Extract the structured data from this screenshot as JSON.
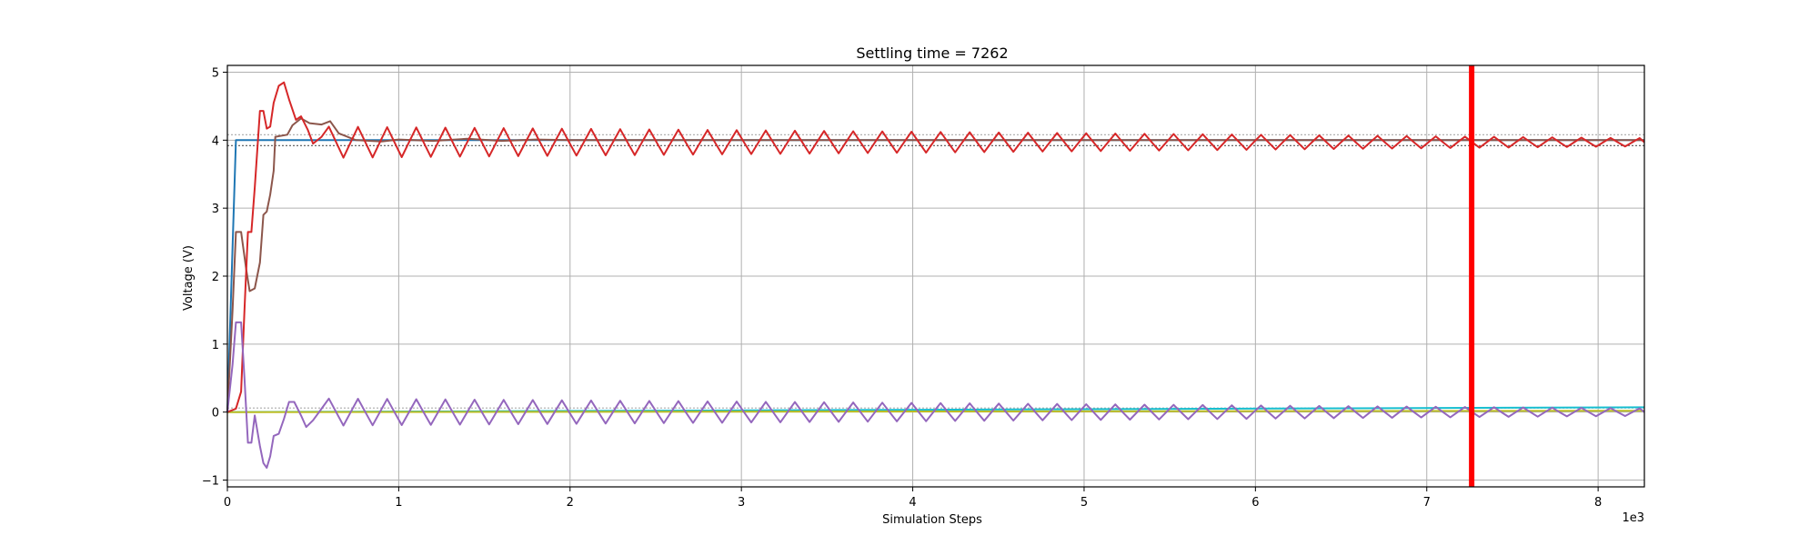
{
  "chart_data": {
    "type": "line",
    "title": "Settling time = 7262",
    "xlabel": "Simulation Steps",
    "ylabel": "Voltage (V)",
    "x_offset_label": "1e3",
    "xlim": [
      0,
      8.27
    ],
    "ylim": [
      -1.1,
      5.1
    ],
    "xticks": [
      0,
      1,
      2,
      3,
      4,
      5,
      6,
      7,
      8
    ],
    "yticks": [
      -1,
      0,
      1,
      2,
      3,
      4,
      5
    ],
    "grid": true,
    "settling_marker": {
      "x": 7.262,
      "color": "#ff0000"
    },
    "tolerance_bands": [
      {
        "y": 4.08,
        "color": "#aaaaaa"
      },
      {
        "y": 3.92,
        "color": "#555555"
      },
      {
        "y": 0.06,
        "color": "#aaaaaa"
      }
    ],
    "series": [
      {
        "color": "#1f77b4",
        "points": [
          [
            0,
            0
          ],
          [
            0.05,
            4.0
          ],
          [
            8.27,
            4.0
          ]
        ]
      },
      {
        "color": "#17becf",
        "points": [
          [
            0,
            0.0
          ],
          [
            8.27,
            0.07
          ]
        ]
      },
      {
        "color": "#bcbd22",
        "points": [
          [
            0,
            0.0
          ],
          [
            8.27,
            0.02
          ]
        ]
      },
      {
        "color": "#8c564b",
        "points": [
          [
            0,
            0
          ],
          [
            0.03,
            1.5
          ],
          [
            0.05,
            2.65
          ],
          [
            0.08,
            2.65
          ],
          [
            0.11,
            2.1
          ],
          [
            0.13,
            1.78
          ],
          [
            0.16,
            1.82
          ],
          [
            0.19,
            2.2
          ],
          [
            0.21,
            2.9
          ],
          [
            0.23,
            2.95
          ],
          [
            0.25,
            3.2
          ],
          [
            0.27,
            3.55
          ],
          [
            0.28,
            4.05
          ],
          [
            0.35,
            4.08
          ],
          [
            0.38,
            4.22
          ],
          [
            0.43,
            4.32
          ],
          [
            0.48,
            4.25
          ],
          [
            0.55,
            4.23
          ],
          [
            0.6,
            4.28
          ],
          [
            0.65,
            4.1
          ],
          [
            0.75,
            4.0
          ],
          [
            0.9,
            3.98
          ],
          [
            1.0,
            4.01
          ],
          [
            1.2,
            3.99
          ],
          [
            1.4,
            4.02
          ],
          [
            1.6,
            3.99
          ],
          [
            1.8,
            4.01
          ],
          [
            2.0,
            4.0
          ],
          [
            8.27,
            4.0
          ]
        ]
      },
      {
        "color": "#d62728",
        "damped": {
          "start": 0.55,
          "center": 3.97,
          "amp0": 0.23,
          "amp1": 0.06,
          "period": 0.17
        },
        "points": [
          [
            0,
            0
          ],
          [
            0.05,
            0.05
          ],
          [
            0.08,
            0.3
          ],
          [
            0.1,
            1.5
          ],
          [
            0.12,
            2.65
          ],
          [
            0.14,
            2.65
          ],
          [
            0.16,
            3.3
          ],
          [
            0.19,
            4.43
          ],
          [
            0.21,
            4.43
          ],
          [
            0.23,
            4.17
          ],
          [
            0.25,
            4.2
          ],
          [
            0.27,
            4.55
          ],
          [
            0.3,
            4.8
          ],
          [
            0.33,
            4.85
          ],
          [
            0.36,
            4.6
          ],
          [
            0.4,
            4.3
          ],
          [
            0.43,
            4.35
          ],
          [
            0.47,
            4.15
          ],
          [
            0.5,
            3.95
          ],
          [
            0.55,
            4.05
          ]
        ]
      },
      {
        "color": "#9467bd",
        "damped": {
          "start": 0.55,
          "center": 0.0,
          "amp0": 0.2,
          "amp1": 0.055,
          "period": 0.17
        },
        "points": [
          [
            0,
            0
          ],
          [
            0.03,
            0.7
          ],
          [
            0.05,
            1.32
          ],
          [
            0.08,
            1.32
          ],
          [
            0.1,
            0.5
          ],
          [
            0.12,
            -0.45
          ],
          [
            0.14,
            -0.45
          ],
          [
            0.16,
            -0.05
          ],
          [
            0.19,
            -0.5
          ],
          [
            0.21,
            -0.75
          ],
          [
            0.23,
            -0.82
          ],
          [
            0.25,
            -0.65
          ],
          [
            0.27,
            -0.35
          ],
          [
            0.3,
            -0.32
          ],
          [
            0.33,
            -0.1
          ],
          [
            0.36,
            0.15
          ],
          [
            0.39,
            0.15
          ],
          [
            0.43,
            -0.05
          ],
          [
            0.46,
            -0.22
          ],
          [
            0.5,
            -0.12
          ],
          [
            0.55,
            0.05
          ]
        ]
      }
    ]
  }
}
